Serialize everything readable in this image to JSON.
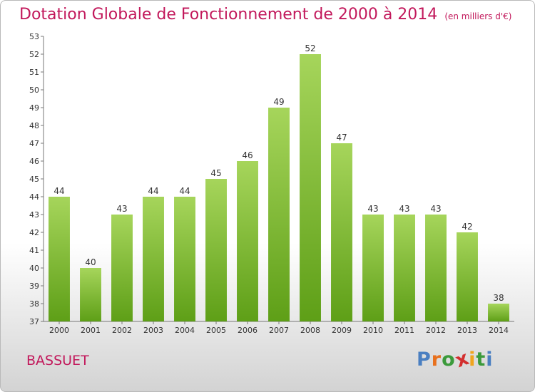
{
  "chart_title": "Dotation Globale de Fonctionnement de 2000 à 2014",
  "chart_unit": "(en milliers d'€)",
  "place_name": "BASSUET",
  "logo_text": "Proxiti",
  "colors": {
    "bar_top": "#a6d55b",
    "bar_bottom": "#5e9f17",
    "title": "#c2185b",
    "axis": "#777777"
  },
  "chart_data": {
    "type": "bar",
    "categories": [
      "2000",
      "2001",
      "2002",
      "2003",
      "2004",
      "2005",
      "2006",
      "2007",
      "2008",
      "2009",
      "2010",
      "2011",
      "2012",
      "2013",
      "2014"
    ],
    "values": [
      44,
      40,
      43,
      44,
      44,
      45,
      46,
      49,
      52,
      47,
      43,
      43,
      43,
      42,
      38
    ],
    "ylim": [
      37,
      53
    ],
    "yticks": [
      37,
      38,
      39,
      40,
      41,
      42,
      43,
      44,
      45,
      46,
      47,
      48,
      49,
      50,
      51,
      52,
      53
    ],
    "grid": false,
    "legend": "none"
  }
}
